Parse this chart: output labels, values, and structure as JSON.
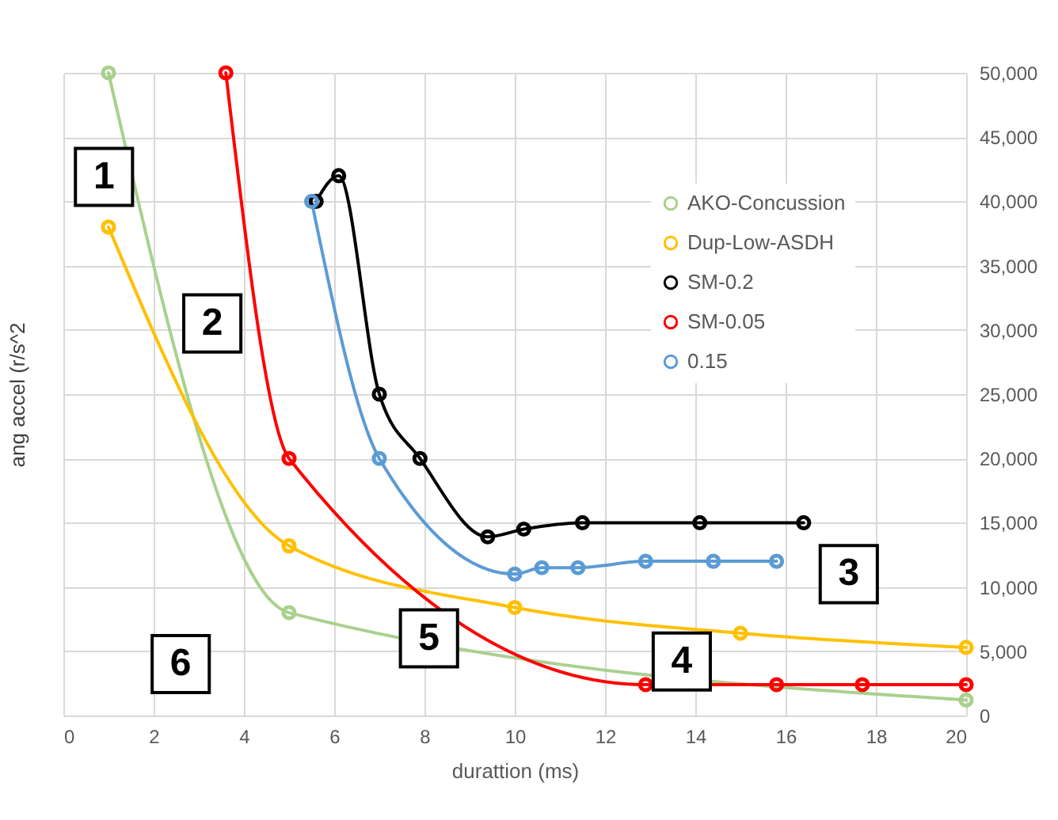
{
  "chart_data": {
    "type": "line",
    "xlabel": "durattion (ms)",
    "ylabel": "ang accel (r/s^2",
    "xlim": [
      0,
      20
    ],
    "xticks": [
      0,
      2,
      4,
      6,
      8,
      10,
      12,
      14,
      16,
      18,
      20
    ],
    "ylim": [
      0,
      50000
    ],
    "yticks": [
      {
        "value": 0,
        "label": "0"
      },
      {
        "value": 5000,
        "label": "5,000"
      },
      {
        "value": 10000,
        "label": "10,000"
      },
      {
        "value": 15000,
        "label": "15,000"
      },
      {
        "value": 20000,
        "label": "20,000"
      },
      {
        "value": 25000,
        "label": "25,000"
      },
      {
        "value": 30000,
        "label": "30,000"
      },
      {
        "value": 35000,
        "label": "35,000"
      },
      {
        "value": 40000,
        "label": "40,000"
      },
      {
        "value": 45000,
        "label": "45,000"
      },
      {
        "value": 50000,
        "label": "50,000"
      }
    ],
    "grid": true,
    "legend": "top right",
    "marker": "circle",
    "line_style": "solid",
    "series": [
      {
        "name": "AKO-Concussion",
        "color": "#a9d18e",
        "x": [
          1,
          5,
          20
        ],
        "values": [
          50000,
          8000,
          1200
        ]
      },
      {
        "name": "Dup-Low-ASDH",
        "color": "#ffc000",
        "x": [
          1,
          5,
          10,
          15,
          20
        ],
        "values": [
          38000,
          13200,
          8400,
          6400,
          5300
        ]
      },
      {
        "name": "SM-0.2",
        "color": "#000000",
        "x": [
          5.6,
          6.1,
          7,
          7.9,
          9.4,
          10.2,
          11.5,
          14.1,
          16.4
        ],
        "values": [
          40000,
          42000,
          25000,
          20000,
          13900,
          14500,
          15000,
          15000,
          15000
        ]
      },
      {
        "name": "SM-0.05",
        "color": "#ff0000",
        "x": [
          3.6,
          5,
          12.9,
          15.8,
          17.7,
          20
        ],
        "values": [
          50000,
          20000,
          2400,
          2400,
          2400,
          2400
        ]
      },
      {
        "name": "0.15",
        "color": "#5b9bd5",
        "x": [
          5.5,
          7,
          10,
          10.6,
          11.4,
          12.9,
          14.4,
          15.8
        ],
        "values": [
          40000,
          20000,
          11000,
          11500,
          11500,
          12000,
          12000,
          12000
        ]
      }
    ],
    "annotations": [
      {
        "text": "1",
        "x": 0.9,
        "y": 41900
      },
      {
        "text": "2",
        "x": 3.3,
        "y": 30500
      },
      {
        "text": "3",
        "x": 17.4,
        "y": 11000
      },
      {
        "text": "4",
        "x": 13.7,
        "y": 4200
      },
      {
        "text": "5",
        "x": 8.1,
        "y": 6000
      },
      {
        "text": "6",
        "x": 2.6,
        "y": 4000
      }
    ]
  }
}
